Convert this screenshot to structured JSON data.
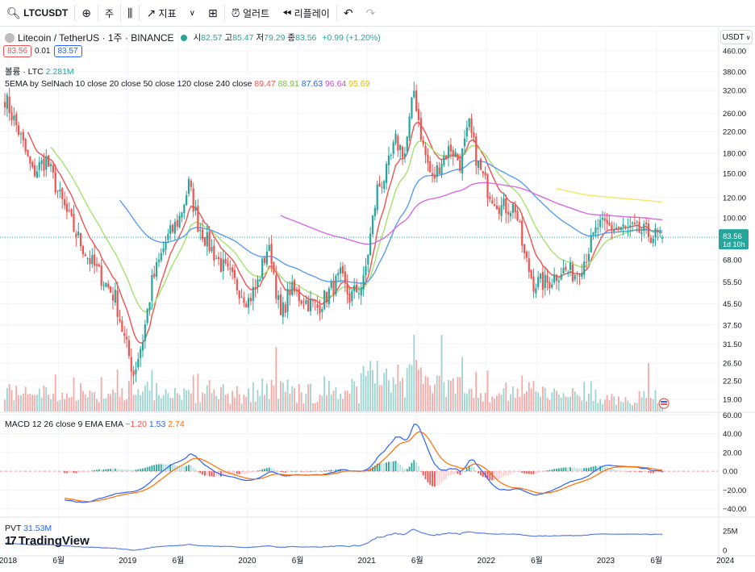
{
  "toolbar": {
    "symbol": "LTCUSDT",
    "interval": "주",
    "indicators": "지표",
    "alerts": "얼러트",
    "replay": "리플레이"
  },
  "legend": {
    "title": "Litecoin / TetherUS · 1주 · BINANCE",
    "ohlc": [
      {
        "label": "시",
        "value": "82.57"
      },
      {
        "label": "고",
        "value": "85.47"
      },
      {
        "label": "저",
        "value": "79.29"
      },
      {
        "label": "종",
        "value": "83.56"
      }
    ],
    "change": "+0.99 (+1.20%)",
    "bid": "83.56",
    "spread": "0.01",
    "ask": "83.57",
    "volume_label": "볼륨 · LTC",
    "volume_value": "2.281M",
    "ema_label": "5EMA by SelNach 10 close 20 close 50 close 120 close 240 close",
    "ema_values": [
      "89.47",
      "88.91",
      "87.63",
      "96.64",
      "95.69"
    ],
    "macd_label": "MACD 12 26 close 9 EMA EMA",
    "macd_values": [
      "−1.20",
      "1.53",
      "2.74"
    ],
    "pvt_label": "PVT",
    "pvt_value": "31.53M",
    "currency": "USDT",
    "price_tag": "83.56",
    "countdown": "1d 10h",
    "brand": "TradingView"
  },
  "colors": {
    "up": "#26a69a",
    "down": "#ef5350",
    "ema10": "#ef5350",
    "ema20": "#a5e26e",
    "ema50": "#5b9cf6",
    "ema120": "#d96be0",
    "ema240": "#f5e663",
    "macd": "#2962ff",
    "signal": "#ff6d00",
    "pvt": "#5b7fe8",
    "grid": "#f0f3fa"
  },
  "chart_data": [
    {
      "type": "candlestick",
      "scale": "log",
      "ylim": [
        17,
        470
      ],
      "y_ticks": [
        "460.00",
        "380.00",
        "320.00",
        "260.00",
        "220.00",
        "180.00",
        "150.00",
        "120.00",
        "100.00",
        "83.56",
        "68.00",
        "55.50",
        "45.50",
        "37.50",
        "31.50",
        "26.50",
        "22.50",
        "19.00"
      ],
      "x_ticks": [
        "2018",
        "6월",
        "2019",
        "6월",
        "2020",
        "6월",
        "2021",
        "6월",
        "2022",
        "6월",
        "2023",
        "6월",
        "2024"
      ],
      "price_anchors": [
        [
          0,
          300
        ],
        [
          6,
          220
        ],
        [
          12,
          150
        ],
        [
          18,
          170
        ],
        [
          24,
          120
        ],
        [
          30,
          90
        ],
        [
          36,
          70
        ],
        [
          42,
          58
        ],
        [
          48,
          48
        ],
        [
          52,
          33
        ],
        [
          56,
          24
        ],
        [
          60,
          33
        ],
        [
          64,
          55
        ],
        [
          70,
          80
        ],
        [
          76,
          100
        ],
        [
          80,
          135
        ],
        [
          84,
          95
        ],
        [
          88,
          80
        ],
        [
          94,
          65
        ],
        [
          100,
          55
        ],
        [
          106,
          47
        ],
        [
          110,
          55
        ],
        [
          114,
          75
        ],
        [
          116,
          70
        ],
        [
          118,
          52
        ],
        [
          120,
          40
        ],
        [
          124,
          52
        ],
        [
          130,
          47
        ],
        [
          136,
          44
        ],
        [
          142,
          52
        ],
        [
          146,
          58
        ],
        [
          150,
          48
        ],
        [
          156,
          55
        ],
        [
          162,
          130
        ],
        [
          166,
          150
        ],
        [
          170,
          200
        ],
        [
          174,
          180
        ],
        [
          178,
          320
        ],
        [
          182,
          190
        ],
        [
          186,
          140
        ],
        [
          190,
          170
        ],
        [
          194,
          190
        ],
        [
          198,
          165
        ],
        [
          202,
          230
        ],
        [
          206,
          160
        ],
        [
          210,
          130
        ],
        [
          216,
          110
        ],
        [
          222,
          110
        ],
        [
          226,
          70
        ],
        [
          230,
          55
        ],
        [
          236,
          55
        ],
        [
          242,
          62
        ],
        [
          248,
          60
        ],
        [
          252,
          68
        ],
        [
          258,
          92
        ],
        [
          264,
          92
        ],
        [
          270,
          90
        ],
        [
          276,
          88
        ],
        [
          282,
          85
        ],
        [
          286,
          83.56
        ]
      ]
    },
    {
      "type": "bar",
      "name": "볼륨 · LTC",
      "last_value": "2.281M"
    },
    {
      "type": "line",
      "name": "MACD 12 26 close 9 EMA EMA",
      "y_ticks": [
        "60.00",
        "40.00",
        "20.00",
        "0.00",
        "−20.00",
        "−40.00"
      ],
      "ylim": [
        -48,
        62
      ]
    },
    {
      "type": "line",
      "name": "PVT",
      "last_value": "31.53M",
      "y_ticks": [
        "25M",
        "0"
      ]
    }
  ]
}
